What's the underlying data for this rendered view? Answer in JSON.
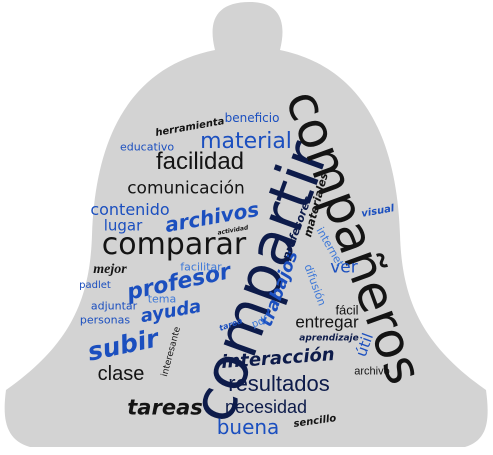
{
  "colors": {
    "bell": "#d3d3d3",
    "navy": "#0d1b4a",
    "black": "#141414",
    "blue": "#1b4fbf",
    "lightblue": "#3d78d8"
  },
  "words": [
    {
      "text": "compartir",
      "color": "navy"
    },
    {
      "text": "compañeros",
      "color": "black"
    },
    {
      "text": "comparar",
      "color": "black"
    },
    {
      "text": "facilidad",
      "color": "black"
    },
    {
      "text": "material",
      "color": "blue"
    },
    {
      "text": "comunicación",
      "color": "black"
    },
    {
      "text": "contenido",
      "color": "blue"
    },
    {
      "text": "archivos",
      "color": "blue"
    },
    {
      "text": "lugar",
      "color": "blue"
    },
    {
      "text": "profesor",
      "color": "blue"
    },
    {
      "text": "mejor",
      "color": "black"
    },
    {
      "text": "subir",
      "color": "blue"
    },
    {
      "text": "ayuda",
      "color": "blue"
    },
    {
      "text": "clase",
      "color": "black"
    },
    {
      "text": "interacción",
      "color": "navy"
    },
    {
      "text": "resultados",
      "color": "navy"
    },
    {
      "text": "tareas",
      "color": "black"
    },
    {
      "text": "necesidad",
      "color": "navy"
    },
    {
      "text": "buena",
      "color": "blue"
    },
    {
      "text": "entregar",
      "color": "black"
    },
    {
      "text": "trabajos",
      "color": "blue"
    },
    {
      "text": "ver",
      "color": "blue"
    },
    {
      "text": "profesores",
      "color": "navy"
    },
    {
      "text": "materiales",
      "color": "black"
    },
    {
      "text": "internet",
      "color": "lightblue"
    },
    {
      "text": "difusión",
      "color": "lightblue"
    },
    {
      "text": "fácil",
      "color": "black"
    },
    {
      "text": "útil",
      "color": "blue"
    },
    {
      "text": "aprendizaje",
      "color": "navy"
    },
    {
      "text": "archivo",
      "color": "black"
    },
    {
      "text": "sencillo",
      "color": "black"
    },
    {
      "text": "herramienta",
      "color": "black"
    },
    {
      "text": "beneficio",
      "color": "blue"
    },
    {
      "text": "educativo",
      "color": "blue"
    },
    {
      "text": "visual",
      "color": "blue"
    },
    {
      "text": "actividad",
      "color": "black"
    },
    {
      "text": "facilitar",
      "color": "lightblue"
    },
    {
      "text": "padlet",
      "color": "blue"
    },
    {
      "text": "tema",
      "color": "lightblue"
    },
    {
      "text": "adjuntar",
      "color": "blue"
    },
    {
      "text": "personas",
      "color": "blue"
    },
    {
      "text": "tarea",
      "color": "blue"
    },
    {
      "text": "pdf",
      "color": "lightblue"
    },
    {
      "text": "interesante",
      "color": "black"
    }
  ]
}
